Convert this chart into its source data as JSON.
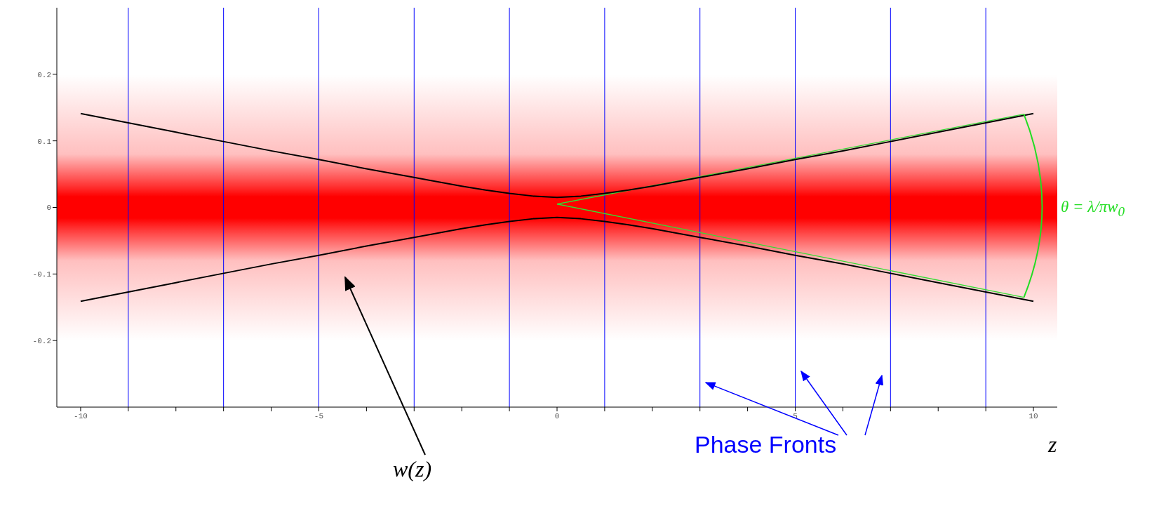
{
  "chart_data": {
    "type": "line",
    "xlabel": "z",
    "xlim": [
      -10.5,
      10.5
    ],
    "ylim": [
      -0.3,
      0.3
    ],
    "xticks": [
      -10,
      {
        "value": -9,
        "label": null
      },
      {
        "value": -8,
        "label": null
      },
      {
        "value": -7,
        "label": null
      },
      {
        "value": -6,
        "label": null
      },
      -5,
      {
        "value": -4,
        "label": null
      },
      {
        "value": -3,
        "label": null
      },
      {
        "value": -2,
        "label": null
      },
      {
        "value": -1,
        "label": null
      },
      0,
      {
        "value": 1,
        "label": null
      },
      {
        "value": 2,
        "label": null
      },
      {
        "value": 3,
        "label": null
      },
      {
        "value": 4,
        "label": null
      },
      5,
      {
        "value": 6,
        "label": null
      },
      {
        "value": 7,
        "label": null
      },
      {
        "value": 8,
        "label": null
      },
      {
        "value": 9,
        "label": null
      },
      10
    ],
    "yticks": [
      -0.2,
      -0.1,
      0,
      0.1,
      0.2
    ],
    "series": [
      {
        "color": "#000000",
        "x": [
          -10,
          -9,
          -8,
          -7,
          -6,
          -5,
          -4,
          -3,
          -2,
          -1.5,
          -1,
          -0.5,
          0,
          0.5,
          1,
          1.5,
          2,
          3,
          4,
          5,
          6,
          7,
          8,
          9,
          10
        ],
        "values": [
          0.141,
          0.127,
          0.113,
          0.099,
          0.085,
          0.072,
          0.058,
          0.045,
          0.032,
          0.026,
          0.021,
          0.017,
          0.015,
          0.017,
          0.021,
          0.026,
          0.032,
          0.045,
          0.058,
          0.072,
          0.085,
          0.099,
          0.113,
          0.127,
          0.141
        ]
      },
      {
        "color": "#000000",
        "x": [
          -10,
          -9,
          -8,
          -7,
          -6,
          -5,
          -4,
          -3,
          -2,
          -1.5,
          -1,
          -0.5,
          0,
          0.5,
          1,
          1.5,
          2,
          3,
          4,
          5,
          6,
          7,
          8,
          9,
          10
        ],
        "values": [
          -0.141,
          -0.127,
          -0.113,
          -0.099,
          -0.085,
          -0.072,
          -0.058,
          -0.045,
          -0.032,
          -0.026,
          -0.021,
          -0.017,
          -0.015,
          -0.017,
          -0.021,
          -0.026,
          -0.032,
          -0.045,
          -0.058,
          -0.072,
          -0.085,
          -0.099,
          -0.113,
          -0.127,
          -0.141
        ]
      },
      {
        "color": "#33dd33",
        "x": [
          0,
          9.8
        ],
        "values": [
          0.005,
          0.14
        ]
      },
      {
        "color": "#33dd33",
        "x": [
          0,
          9.8
        ],
        "values": [
          0.005,
          -0.135
        ]
      }
    ],
    "ref_lines": [
      {
        "axis": "x",
        "value": -9,
        "color": "#0000ff"
      },
      {
        "axis": "x",
        "value": -7,
        "color": "#0000ff"
      },
      {
        "axis": "x",
        "value": -5,
        "color": "#0000ff"
      },
      {
        "axis": "x",
        "value": -3,
        "color": "#0000ff"
      },
      {
        "axis": "x",
        "value": -1,
        "color": "#0000ff"
      },
      {
        "axis": "x",
        "value": 1,
        "color": "#0000ff"
      },
      {
        "axis": "x",
        "value": 3,
        "color": "#0000ff"
      },
      {
        "axis": "x",
        "value": 5,
        "color": "#0000ff"
      },
      {
        "axis": "x",
        "value": 7,
        "color": "#0000ff"
      },
      {
        "axis": "x",
        "value": 9,
        "color": "#0000ff"
      }
    ],
    "bands": [
      {
        "axis": "y",
        "from": -0.2,
        "to": 0.2,
        "color": "#ff0000"
      }
    ],
    "annotations": [
      "w(z)",
      "Phase Fronts",
      "θ = λ/πw$_{0}$"
    ],
    "grid": false,
    "legend": false,
    "marker": "none",
    "line_style": "solid"
  }
}
